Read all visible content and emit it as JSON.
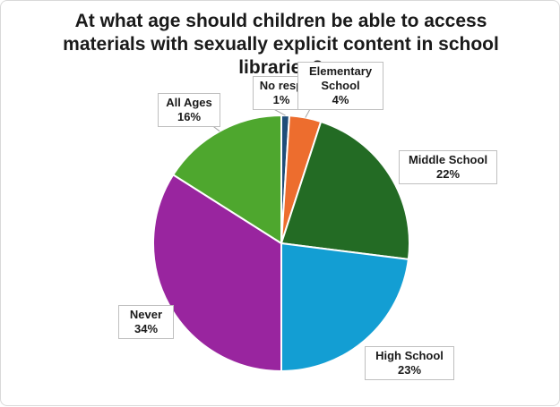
{
  "chart_data": {
    "type": "pie",
    "title": "At what age should children be able to access materials with sexually explicit content in school libraries?",
    "categories": [
      "No response",
      "Elementary School",
      "Middle School",
      "High School",
      "Never",
      "All Ages"
    ],
    "values": [
      1,
      4,
      22,
      23,
      34,
      16
    ],
    "labels": [
      {
        "name": "No resp",
        "pct": "1%"
      },
      {
        "name": "Elementary School",
        "pct": "4%"
      },
      {
        "name": "Middle School",
        "pct": "22%"
      },
      {
        "name": "High School",
        "pct": "23%"
      },
      {
        "name": "Never",
        "pct": "34%"
      },
      {
        "name": "All Ages",
        "pct": "16%"
      }
    ],
    "colors": [
      "#1f4e79",
      "#ed6d2e",
      "#236b24",
      "#139ed3",
      "#99259f",
      "#4ea72e"
    ],
    "legend": "none",
    "grid": false
  }
}
